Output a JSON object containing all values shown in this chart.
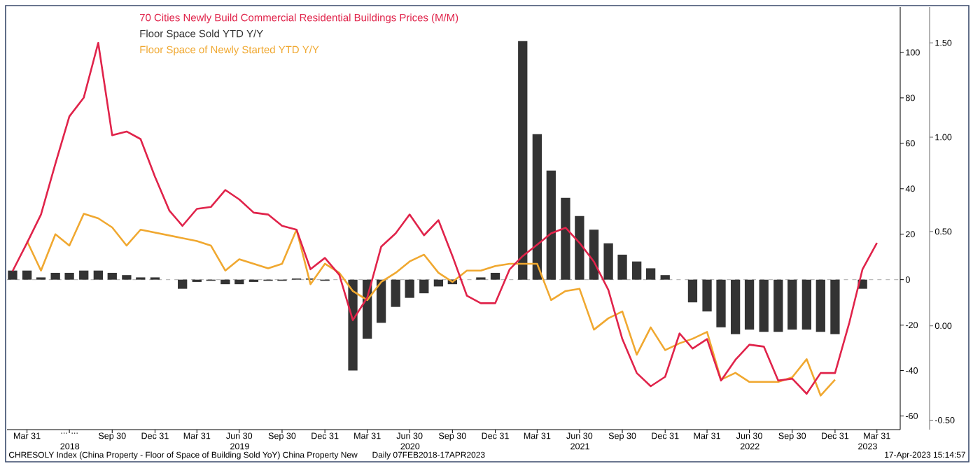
{
  "chart_data": {
    "type": "bar",
    "series": [
      {
        "name": "70 Cities Newly Build Commercial Residential Buildings Prices (M/M)",
        "color": "#e0234a",
        "type": "line",
        "axis": "y2",
        "x": [
          "2018-02-28",
          "2018-03-31",
          "2018-04-30",
          "2018-05-31",
          "2018-06-30",
          "2018-07-31",
          "2018-08-31",
          "2018-09-30",
          "2018-10-31",
          "2018-11-30",
          "2018-12-31",
          "2019-01-31",
          "2019-02-28",
          "2019-03-31",
          "2019-04-30",
          "2019-05-31",
          "2019-06-30",
          "2019-07-31",
          "2019-08-31",
          "2019-09-30",
          "2019-10-31",
          "2019-11-30",
          "2019-12-31",
          "2020-01-31",
          "2020-02-29",
          "2020-03-31",
          "2020-04-30",
          "2020-05-31",
          "2020-06-30",
          "2020-07-31",
          "2020-08-31",
          "2020-09-30",
          "2020-10-31",
          "2020-11-30",
          "2020-12-31",
          "2021-01-31",
          "2021-02-28",
          "2021-03-31",
          "2021-04-30",
          "2021-05-31",
          "2021-06-30",
          "2021-07-31",
          "2021-08-31",
          "2021-09-30",
          "2021-10-31",
          "2021-11-30",
          "2021-12-31",
          "2022-01-31",
          "2022-02-28",
          "2022-03-31",
          "2022-04-30",
          "2022-05-31",
          "2022-06-30",
          "2022-07-31",
          "2022-08-31",
          "2022-09-30",
          "2022-10-31",
          "2022-11-30",
          "2022-12-31",
          "2023-01-31",
          "2023-02-28",
          "2023-03-31"
        ],
        "values": [
          0.29,
          0.44,
          0.59,
          0.86,
          1.11,
          1.21,
          1.5,
          1.01,
          1.03,
          0.99,
          0.79,
          0.61,
          0.53,
          0.62,
          0.63,
          0.72,
          0.67,
          0.6,
          0.59,
          0.53,
          0.51,
          0.3,
          0.36,
          0.27,
          0.03,
          0.15,
          0.42,
          0.49,
          0.59,
          0.48,
          0.56,
          0.37,
          0.16,
          0.12,
          0.12,
          0.3,
          0.37,
          0.43,
          0.49,
          0.52,
          0.44,
          0.34,
          0.19,
          -0.07,
          -0.25,
          -0.32,
          -0.27,
          -0.04,
          -0.12,
          -0.07,
          -0.29,
          -0.18,
          -0.1,
          -0.11,
          -0.29,
          -0.28,
          -0.36,
          -0.25,
          -0.25,
          0.02,
          0.3,
          0.44
        ]
      },
      {
        "name": "Floor Space Sold YTD Y/Y",
        "color": "#333333",
        "x": [
          "2018-02-28",
          "2018-03-31",
          "2018-04-30",
          "2018-05-31",
          "2018-06-30",
          "2018-07-31",
          "2018-08-31",
          "2018-09-30",
          "2018-10-31",
          "2018-11-30",
          "2018-12-31",
          "2019-02-28",
          "2019-03-31",
          "2019-04-30",
          "2019-05-31",
          "2019-06-30",
          "2019-07-31",
          "2019-08-31",
          "2019-09-30",
          "2019-10-31",
          "2019-11-30",
          "2019-12-31",
          "2020-02-29",
          "2020-03-31",
          "2020-04-30",
          "2020-05-31",
          "2020-06-30",
          "2020-07-31",
          "2020-08-31",
          "2020-09-30",
          "2020-10-31",
          "2020-11-30",
          "2020-12-31",
          "2021-02-28",
          "2021-03-31",
          "2021-04-30",
          "2021-05-31",
          "2021-06-30",
          "2021-07-31",
          "2021-08-31",
          "2021-09-30",
          "2021-10-31",
          "2021-11-30",
          "2021-12-31",
          "2022-02-28",
          "2022-03-31",
          "2022-04-30",
          "2022-05-31",
          "2022-06-30",
          "2022-07-31",
          "2022-08-31",
          "2022-09-30",
          "2022-10-31",
          "2022-11-30",
          "2022-12-31",
          "2023-02-28"
        ],
        "values": [
          4,
          4,
          1,
          3,
          3,
          4,
          4,
          3,
          2,
          1,
          1,
          -4,
          -1,
          -0.5,
          -2,
          -2,
          -1,
          -0.5,
          -0.5,
          0.5,
          0.5,
          -0.5,
          -40,
          -26,
          -19,
          -12,
          -8,
          -6,
          -3,
          -2,
          0,
          1,
          3,
          105,
          64,
          48,
          36,
          28,
          22,
          16,
          11,
          8,
          5,
          2,
          -10,
          -14,
          -21,
          -24,
          -22,
          -23,
          -23,
          -22,
          -22,
          -23,
          -24,
          -4
        ]
      },
      {
        "name": "Floor Space of Newly Started YTD Y/Y",
        "color": "#f0a830",
        "type": "line",
        "x": [
          "2018-03-31",
          "2018-04-30",
          "2018-05-31",
          "2018-06-30",
          "2018-07-31",
          "2018-08-31",
          "2018-09-30",
          "2018-10-31",
          "2018-11-30",
          "2019-03-31",
          "2019-04-30",
          "2019-05-31",
          "2019-06-30",
          "2019-07-31",
          "2019-08-31",
          "2019-09-30",
          "2019-10-31",
          "2019-11-30",
          "2019-12-31",
          "2020-01-31",
          "2020-02-29",
          "2020-03-31",
          "2020-04-30",
          "2020-05-31",
          "2020-06-30",
          "2020-07-31",
          "2020-08-31",
          "2020-09-30",
          "2020-10-31",
          "2020-11-30",
          "2020-12-31",
          "2021-01-31",
          "2021-02-28",
          "2021-03-31",
          "2021-04-30",
          "2021-05-31",
          "2021-06-30",
          "2021-07-31",
          "2021-08-31",
          "2021-09-30",
          "2021-10-31",
          "2021-11-30",
          "2021-12-31",
          "2022-01-31",
          "2022-02-28",
          "2022-03-31",
          "2022-04-30",
          "2022-05-31",
          "2022-06-30",
          "2022-07-31",
          "2022-08-31",
          "2022-09-30",
          "2022-10-31",
          "2022-11-30",
          "2022-12-31"
        ],
        "values": [
          17,
          4,
          20,
          15,
          29,
          27,
          23,
          15,
          22,
          17,
          15,
          4,
          9,
          7,
          5,
          7,
          22,
          -2,
          7,
          3,
          -5,
          -9,
          -1,
          3,
          8,
          11,
          3,
          -1,
          4,
          4,
          6,
          7,
          7,
          7,
          -9,
          -5,
          -4,
          -22,
          -17,
          -14,
          -33,
          -21,
          -31,
          -28,
          -26,
          -23,
          -44,
          -41,
          -45,
          -45,
          -45,
          -43,
          -35,
          -51,
          -44
        ]
      }
    ],
    "xlim": [
      "2018-02-16",
      "2023-05-20"
    ],
    "xticks": [
      {
        "value": "2018-03-31",
        "label": "Mar 31"
      },
      {
        "value": "2018-06-30",
        "label": "... ..."
      },
      {
        "value": "2018-09-30",
        "label": "Sep 30"
      },
      {
        "value": "2018-12-31",
        "label": "Dec 31"
      },
      {
        "value": "2019-03-31",
        "label": "Mar 31"
      },
      {
        "value": "2019-06-30",
        "label": "Jun 30"
      },
      {
        "value": "2019-09-30",
        "label": "Sep 30"
      },
      {
        "value": "2019-12-31",
        "label": "Dec 31"
      },
      {
        "value": "2020-03-31",
        "label": "Mar 31"
      },
      {
        "value": "2020-06-30",
        "label": "Jun 30"
      },
      {
        "value": "2020-09-30",
        "label": "Sep 30"
      },
      {
        "value": "2020-12-31",
        "label": "Dec 31"
      },
      {
        "value": "2021-03-31",
        "label": "Mar 31"
      },
      {
        "value": "2021-06-30",
        "label": "Jun 30"
      },
      {
        "value": "2021-09-30",
        "label": "Sep 30"
      },
      {
        "value": "2021-12-31",
        "label": "Dec 31"
      },
      {
        "value": "2022-03-31",
        "label": "Mar 31"
      },
      {
        "value": "2022-06-30",
        "label": "Jun 30"
      },
      {
        "value": "2022-09-30",
        "label": "Sep 30"
      },
      {
        "value": "2022-12-31",
        "label": "Dec 31"
      },
      {
        "value": "2023-03-31",
        "label": "Mar 31"
      }
    ],
    "ylim": [
      -66,
      120
    ],
    "yticks": [
      -60,
      -40,
      -20,
      0,
      20,
      40,
      60,
      80,
      100
    ],
    "y2lim": [
      -0.55,
      1.69
    ],
    "y2ticks": [
      {
        "value": -0.5,
        "label": "-0.50"
      },
      {
        "value": 0,
        "label": "0.00"
      },
      {
        "value": 0.5,
        "label": "0.50"
      },
      {
        "value": 1,
        "label": "1.00"
      },
      {
        "value": 1.5,
        "label": "1.50"
      }
    ],
    "ref_lines": [
      {
        "axis": "y",
        "value": 0,
        "color": "#bbbbbb",
        "line_style": "dashed"
      }
    ],
    "legend": "top left",
    "marker": "none",
    "line_style": "solid",
    "annotations": [
      "2018",
      "2019",
      "2020",
      "2021",
      "2022",
      "2023",
      "CHRESOLY Index (China Property - Floor of Space of Building Sold YoY) China Property New",
      "Daily 07FEB2018-17APR2023",
      "17-Apr-2023 15:14:57"
    ]
  }
}
